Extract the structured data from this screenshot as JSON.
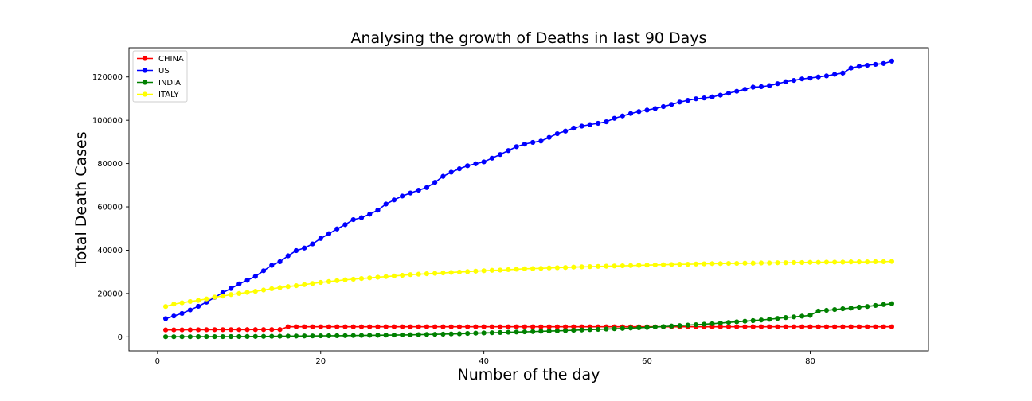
{
  "chart_data": {
    "type": "line",
    "title": "Analysing the growth of Deaths in last 90 Days",
    "xlabel": "Number of the day",
    "ylabel": "Total Death Cases",
    "xlim": [
      -3.5,
      94.5
    ],
    "ylim": [
      -6500,
      133500
    ],
    "x_ticks": [
      0,
      20,
      40,
      60,
      80
    ],
    "y_ticks": [
      0,
      20000,
      40000,
      60000,
      80000,
      100000,
      120000
    ],
    "x_tick_labels": [
      "0",
      "20",
      "40",
      "60",
      "80"
    ],
    "y_tick_labels": [
      "0",
      "20000",
      "40000",
      "60000",
      "80000",
      "100000",
      "120000"
    ],
    "grid": false,
    "legend_position": "top-left",
    "x_start": 1,
    "series": [
      {
        "name": "CHINA",
        "color": "#ff0000",
        "values": [
          3186,
          3204,
          3223,
          3243,
          3261,
          3277,
          3286,
          3297,
          3305,
          3313,
          3320,
          3326,
          3331,
          3334,
          3336,
          4632,
          4632,
          4632,
          4632,
          4632,
          4632,
          4632,
          4633,
          4633,
          4633,
          4633,
          4633,
          4633,
          4633,
          4633,
          4633,
          4633,
          4633,
          4633,
          4633,
          4633,
          4633,
          4633,
          4633,
          4633,
          4633,
          4633,
          4633,
          4633,
          4633,
          4633,
          4634,
          4634,
          4634,
          4634,
          4634,
          4634,
          4634,
          4634,
          4634,
          4634,
          4634,
          4634,
          4634,
          4634,
          4634,
          4634,
          4634,
          4634,
          4634,
          4634,
          4634,
          4634,
          4634,
          4634,
          4634,
          4634,
          4634,
          4634,
          4634,
          4634,
          4634,
          4634,
          4634,
          4634,
          4634,
          4634,
          4634,
          4634,
          4634,
          4634,
          4634,
          4634,
          4634,
          4634
        ]
      },
      {
        "name": "US",
        "color": "#0000ff",
        "values": [
          8400,
          9600,
          10800,
          12400,
          14100,
          16000,
          18200,
          20400,
          22300,
          24400,
          26100,
          27900,
          30500,
          33000,
          34700,
          37400,
          39800,
          41000,
          42900,
          45400,
          47600,
          49800,
          51800,
          54100,
          55000,
          56600,
          58500,
          61300,
          63200,
          65000,
          66400,
          67700,
          68900,
          71300,
          74100,
          76000,
          77600,
          79000,
          79900,
          80800,
          82500,
          84200,
          86000,
          87800,
          89000,
          89800,
          90400,
          92100,
          93800,
          95000,
          96400,
          97300,
          98000,
          98600,
          99300,
          100900,
          102000,
          103100,
          104000,
          104700,
          105400,
          106300,
          107300,
          108400,
          109200,
          109900,
          110300,
          110800,
          111600,
          112500,
          113400,
          114300,
          115300,
          115500,
          116000,
          116900,
          117800,
          118400,
          119100,
          119500,
          120000,
          120500,
          121200,
          121800,
          124100,
          124900,
          125400,
          125800,
          126200,
          127300
        ]
      },
      {
        "name": "INDIA",
        "color": "#008000",
        "values": [
          29,
          32,
          35,
          50,
          75,
          83,
          86,
          99,
          114,
          124,
          149,
          169,
          206,
          242,
          273,
          324,
          353,
          392,
          420,
          452,
          488,
          519,
          559,
          603,
          652,
          686,
          718,
          780,
          825,
          872,
          934,
          1008,
          1079,
          1154,
          1223,
          1323,
          1391,
          1566,
          1694,
          1785,
          1889,
          1985,
          2109,
          2206,
          2293,
          2415,
          2551,
          2649,
          2753,
          2871,
          3025,
          3156,
          3302,
          3434,
          3584,
          3726,
          3868,
          4021,
          4167,
          4337,
          4531,
          4706,
          4971,
          5164,
          5394,
          5598,
          5815,
          6075,
          6348,
          6642,
          6929,
          7207,
          7473,
          7745,
          8102,
          8498,
          8884,
          9195,
          9520,
          9900,
          11903,
          12237,
          12573,
          12948,
          13254,
          13699,
          14011,
          14476,
          14894,
          15301
        ]
      },
      {
        "name": "ITALY",
        "color": "#ffff00",
        "values": [
          14000,
          15100,
          15700,
          16300,
          16800,
          17500,
          18300,
          18800,
          19500,
          20000,
          20500,
          21000,
          21600,
          22200,
          22700,
          23200,
          23600,
          24100,
          24600,
          25100,
          25500,
          25900,
          26300,
          26600,
          26900,
          27200,
          27500,
          27800,
          28100,
          28400,
          28700,
          28900,
          29100,
          29300,
          29500,
          29700,
          29900,
          30100,
          30300,
          30500,
          30700,
          30800,
          31000,
          31200,
          31400,
          31500,
          31600,
          31800,
          31900,
          32000,
          32200,
          32300,
          32400,
          32500,
          32600,
          32700,
          32800,
          32900,
          33000,
          33100,
          33200,
          33300,
          33400,
          33500,
          33500,
          33600,
          33700,
          33800,
          33800,
          33900,
          33900,
          34000,
          34000,
          34100,
          34100,
          34200,
          34200,
          34300,
          34300,
          34400,
          34400,
          34500,
          34500,
          34500,
          34600,
          34600,
          34600,
          34700,
          34700,
          34800
        ]
      }
    ]
  }
}
